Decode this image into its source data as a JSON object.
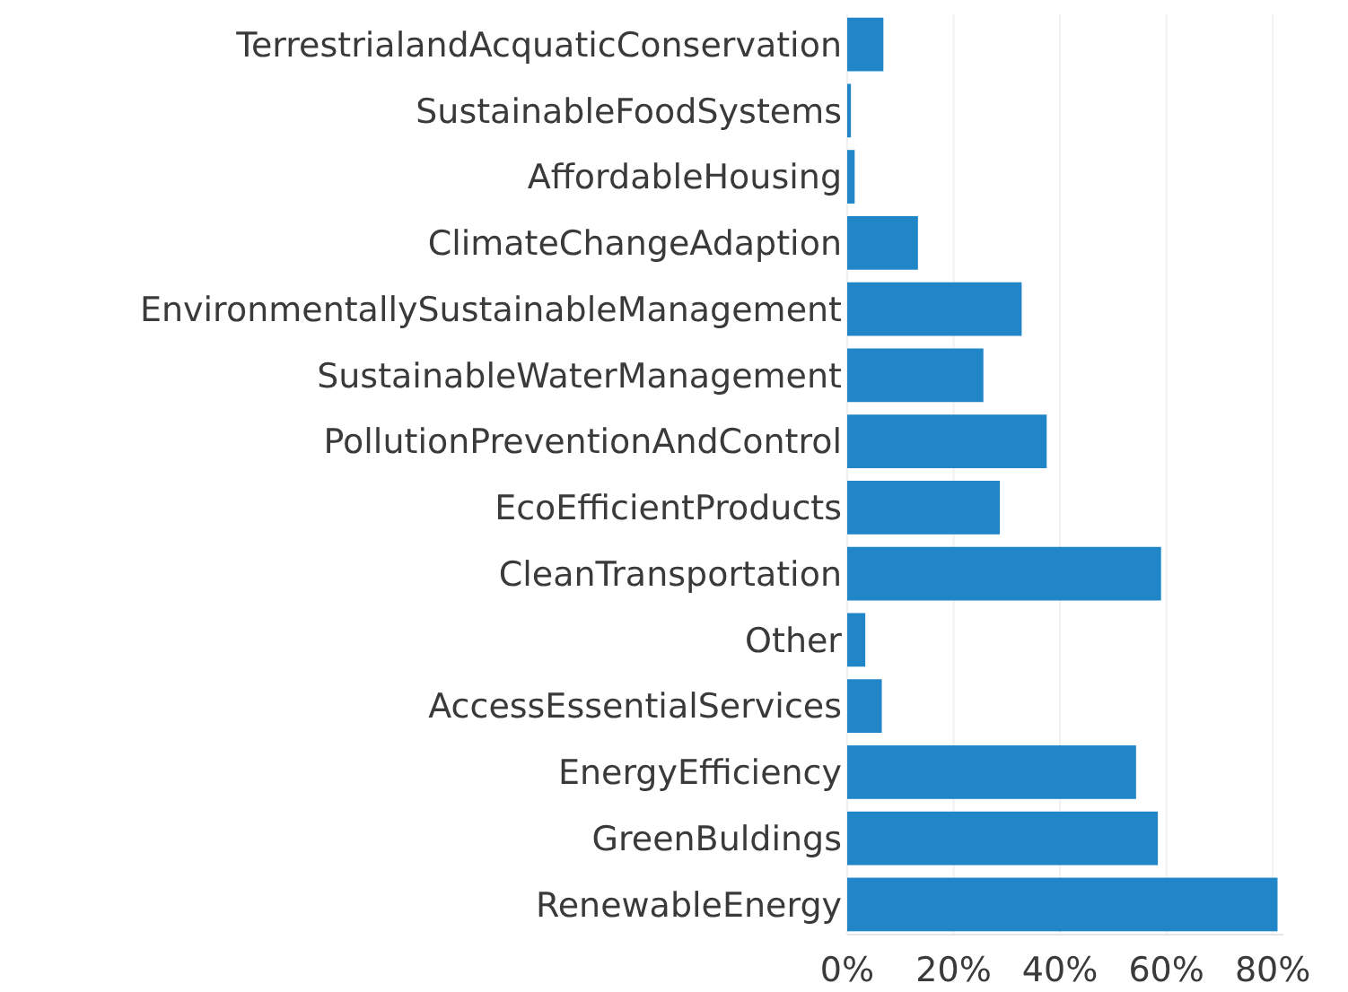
{
  "chart_data": {
    "type": "bar",
    "orientation": "horizontal",
    "categories": [
      "TerrestrialandAcquaticConservation",
      "SustainableFoodSystems",
      "AffordableHousing",
      "ClimateChangeAdaption",
      "EnvironmentallySustainableManagement",
      "SustainableWaterManagement",
      "PollutionPreventionAndControl",
      "EcoEfficientProducts",
      "CleanTransportation",
      "Other",
      "AccessEssentialServices",
      "EnergyEfficiency",
      "GreenBuldings",
      "RenewableEnergy"
    ],
    "values": [
      6.8,
      0.7,
      1.4,
      13.3,
      32.8,
      25.6,
      37.5,
      28.7,
      59.0,
      3.4,
      6.5,
      54.3,
      58.4,
      80.9
    ],
    "color": "#2086c8",
    "xlim": [
      0,
      82
    ],
    "xticks": [
      {
        "value": 0,
        "label": "0%"
      },
      {
        "value": 20,
        "label": "20%"
      },
      {
        "value": 40,
        "label": "40%"
      },
      {
        "value": 60,
        "label": "60%"
      },
      {
        "value": 80,
        "label": "80%"
      }
    ],
    "grid": "x"
  }
}
